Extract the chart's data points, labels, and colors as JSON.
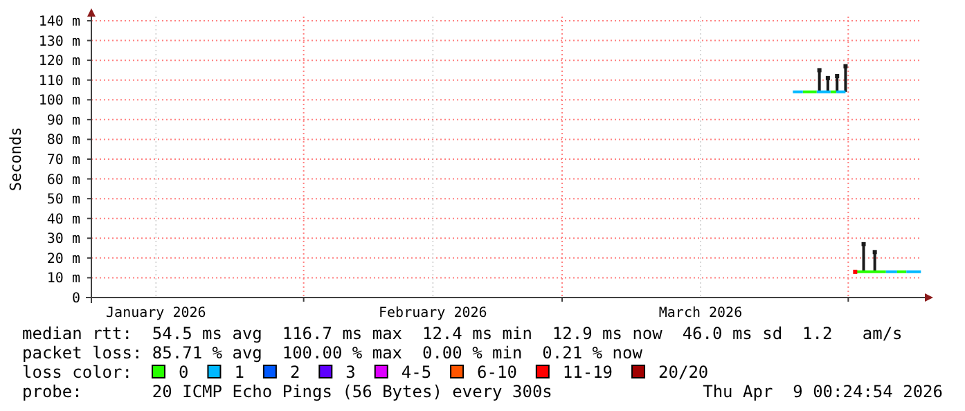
{
  "chart_data": {
    "type": "line",
    "ylabel": "Seconds",
    "legend_title": "loss color:",
    "legend": "bottom",
    "grid": true,
    "marker": "none",
    "line_style": "solid",
    "xlim": [
      "2026-01-09",
      "2026-04-09"
    ],
    "xticks": [
      {
        "value": "2026-01-16",
        "label": "January 2026"
      },
      {
        "value": "2026-02-01",
        "label": null
      },
      {
        "value": "2026-02-15",
        "label": "February 2026"
      },
      {
        "value": "2026-03-01",
        "label": null
      },
      {
        "value": "2026-03-16",
        "label": "March 2026"
      },
      {
        "value": "2026-04-01",
        "label": null
      }
    ],
    "ylim": [
      0,
      140
    ],
    "yticks": [
      0,
      {
        "value": 10,
        "label": "10 m"
      },
      {
        "value": 20,
        "label": "20 m"
      },
      {
        "value": 30,
        "label": "30 m"
      },
      {
        "value": 40,
        "label": "40 m"
      },
      {
        "value": 50,
        "label": "50 m"
      },
      {
        "value": 60,
        "label": "60 m"
      },
      {
        "value": 70,
        "label": "70 m"
      },
      {
        "value": 80,
        "label": "80 m"
      },
      {
        "value": 90,
        "label": "90 m"
      },
      {
        "value": 100,
        "label": "100 m"
      },
      {
        "value": 110,
        "label": "110 m"
      },
      {
        "value": 120,
        "label": "120 m"
      },
      {
        "value": 130,
        "label": "130 m"
      },
      {
        "value": 140,
        "label": "140 m"
      }
    ],
    "series": [
      {
        "type": "scatter",
        "color": "#1a1a1a",
        "marker": "square",
        "x": [
          "2026-03-28T21:00",
          "2026-03-29T19:00",
          "2026-03-30T19:00",
          "2026-03-31T17:00",
          "2026-04-02T16:00",
          "2026-04-03T21:00"
        ],
        "values": [
          115,
          111,
          112,
          117,
          27,
          23
        ],
        "errors": [
          [
            104,
            115
          ],
          [
            104,
            111
          ],
          [
            104,
            112
          ],
          [
            104,
            117
          ],
          [
            13,
            27
          ],
          [
            13,
            23
          ]
        ]
      },
      {
        "name": "0",
        "color": "#26ff00",
        "x": [
          "2026-03-27T02:00",
          "2026-03-28T14:00",
          "2026-03-28T15:00",
          "2026-03-30T02:00",
          "2026-03-30T17:00",
          "2026-03-30T18:00",
          "2026-04-01T22:00",
          "2026-04-05T02:00",
          "2026-04-05T03:00",
          "2026-04-06T07:00",
          "2026-04-07T07:00"
        ],
        "values": [
          104,
          104,
          null,
          104,
          104,
          null,
          13,
          13,
          null,
          13,
          13
        ]
      },
      {
        "name": "1",
        "color": "#00b8ff",
        "x": [
          "2026-03-26",
          "2026-03-27T02:00",
          "2026-03-27T03:00",
          "2026-03-28T14:00",
          "2026-03-30T02:00",
          "2026-03-30T03:00",
          "2026-03-30T17:00",
          "2026-03-31T17:00",
          "2026-03-31T18:00",
          "2026-04-05T02:00",
          "2026-04-06T07:00",
          "2026-04-06T08:00",
          "2026-04-07T07:00",
          "2026-04-08T21:00"
        ],
        "values": [
          104,
          104,
          null,
          104,
          104,
          null,
          104,
          104,
          null,
          13,
          13,
          null,
          13,
          13
        ]
      },
      {
        "name": "2",
        "color": "#0059ff"
      },
      {
        "name": "3",
        "color": "#5e00ff"
      },
      {
        "name": "4-5",
        "color": "#dd00ff"
      },
      {
        "name": "6-10",
        "color": "#ff5500"
      },
      {
        "name": "11-19",
        "type": "scatter",
        "marker": "square",
        "color": "#ff0000",
        "x": [
          "2026-04-01T18:00"
        ],
        "values": [
          13
        ]
      },
      {
        "name": "20/20",
        "color": "#a10000"
      }
    ],
    "annotations": [
      "median rtt:  54.5 ms avg  116.7 ms max  12.4 ms min  12.9 ms now  46.0 ms sd  1.2   am/s",
      "packet loss: 85.71 % avg  100.00 % max  0.00 % min  0.21 % now",
      "probe:       20 ICMP Echo Pings (56 Bytes) every 300s",
      "Thu Apr  9 00:24:54 2026"
    ]
  }
}
